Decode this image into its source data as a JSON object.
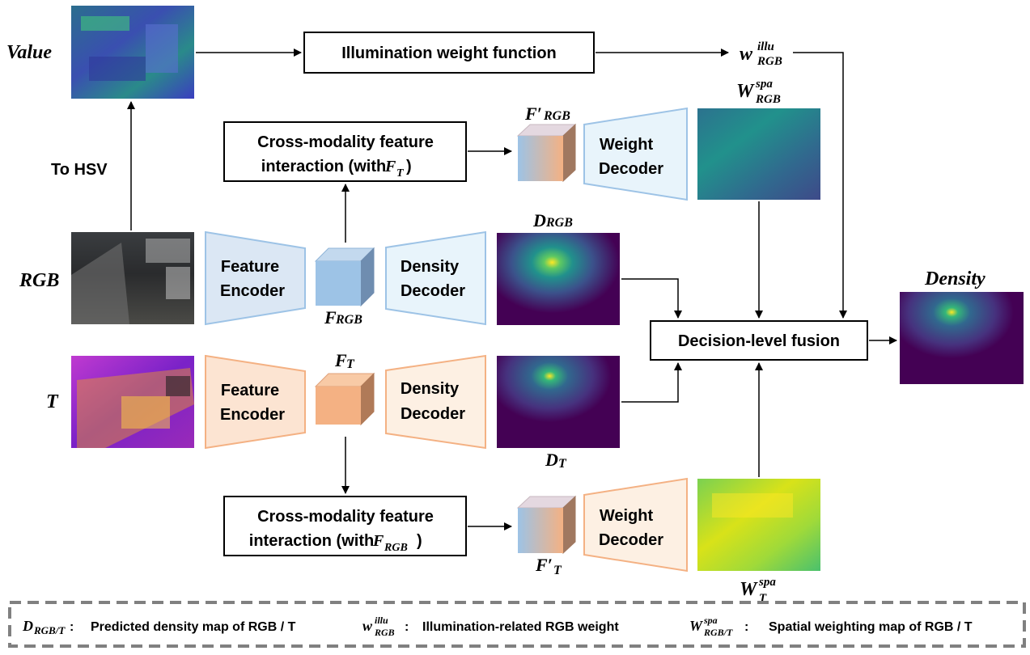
{
  "inputs": {
    "value_label": "Value",
    "rgb_label": "RGB",
    "t_label": "T",
    "to_hsv": "To HSV"
  },
  "modules": {
    "illumination": "Illumination weight function",
    "decision_fusion": "Decision-level fusion",
    "cross_rgb_line1": "Cross-modality feature",
    "cross_rgb_line2": "interaction (with ",
    "cross_rgb_sub": "T",
    "cross_t_line1": "Cross-modality feature",
    "cross_t_line2": "interaction (with ",
    "cross_t_sub": "RGB",
    "feature_encoder_l1": "Feature",
    "feature_encoder_l2": "Encoder",
    "density_decoder_l1": "Density",
    "density_decoder_l2": "Decoder",
    "weight_decoder_l1": "Weight",
    "weight_decoder_l2": "Decoder"
  },
  "symbols": {
    "w_illu": "w",
    "w_illu_sup": "illu",
    "w_illu_sub": "RGB",
    "w_spa_rgb": "W",
    "w_spa_rgb_sup": "spa",
    "w_spa_rgb_sub": "RGB",
    "w_spa_t": "W",
    "w_spa_t_sup": "spa",
    "w_spa_t_sub": "T",
    "f_prime_rgb": "F′",
    "f_prime_rgb_sub": "RGB",
    "f_prime_t": "F′",
    "f_prime_t_sub": "T",
    "f_rgb": "F",
    "f_rgb_sub": "RGB",
    "f_t": "F",
    "f_t_sub": "T",
    "d_rgb": "D",
    "d_rgb_sub": "RGB",
    "d_t": "D",
    "d_t_sub": "T",
    "density_out": "Density"
  },
  "legend": {
    "item1_sym": "D",
    "item1_sub": "RGB/T",
    "item1_text": "Predicted density map of RGB / T",
    "item2_sym": "w",
    "item2_sup": "illu",
    "item2_sub": "RGB",
    "item2_text": "Illumination-related RGB weight",
    "item3_sym": "W",
    "item3_sup": "spa",
    "item3_sub": "RGB/T",
    "item3_text": "Spatial weighting map of RGB / T"
  },
  "colors": {
    "rgb_fill": "#dbe7f4",
    "rgb_stroke": "#9dc3e6",
    "rgb_cube": "#9dc3e6",
    "t_fill": "#fce4d2",
    "t_stroke": "#f4b183",
    "t_cube": "#f4b183",
    "decoder_light_blue": "#e8f4fb",
    "decoder_light_orange": "#fdf0e3",
    "heat_dark": "#3b0f70",
    "viridis_dark": "#440154"
  }
}
